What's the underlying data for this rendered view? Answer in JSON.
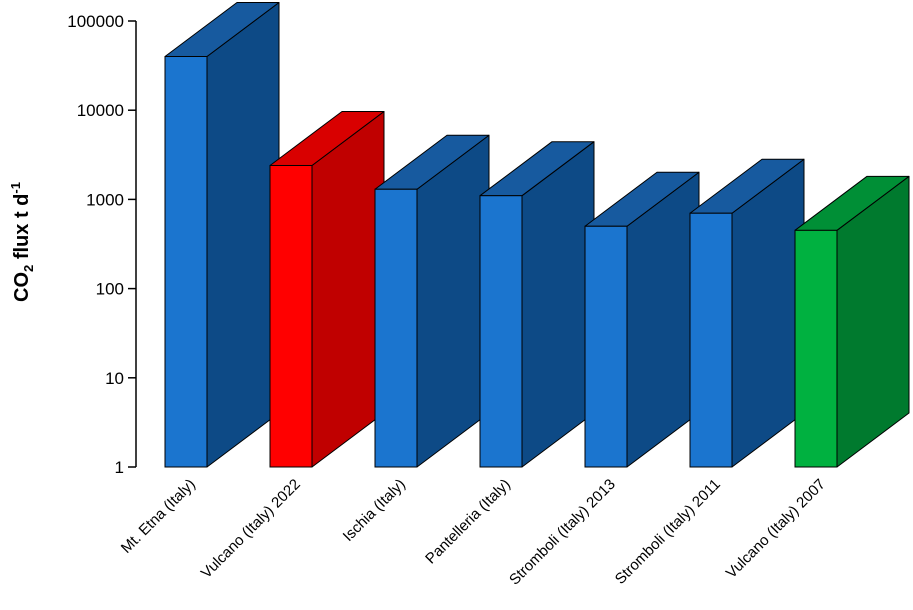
{
  "chart_data": {
    "type": "bar",
    "title": "",
    "ylabel": {
      "base": "CO",
      "sub": "2",
      "mid": " flux t d",
      "sup": "-1"
    },
    "yscale": "log",
    "ylim": [
      1,
      100000
    ],
    "yticks": [
      "1",
      "10",
      "100",
      "1000",
      "10000",
      "100000"
    ],
    "categories": [
      "Mt. Etna (Italy)",
      "Vulcano (Italy) 2022",
      "Ischia (Italy)",
      "Pantelleria (Italy)",
      "Stromboli (Italy) 2013",
      "Stromboli (Italy) 2011",
      "Vulcano (Italy) 2007"
    ],
    "values": [
      40000,
      2400,
      1300,
      1100,
      500,
      700,
      450
    ],
    "colors": [
      "#1b75cf",
      "#ff0000",
      "#1b75cf",
      "#1b75cf",
      "#1b75cf",
      "#1b75cf",
      "#00b140"
    ],
    "side_colors": [
      "#0d4a86",
      "#c00000",
      "#0d4a86",
      "#0d4a86",
      "#0d4a86",
      "#0d4a86",
      "#007a2e"
    ],
    "top_colors": [
      "#175a9f",
      "#d90000",
      "#175a9f",
      "#175a9f",
      "#175a9f",
      "#175a9f",
      "#008f36"
    ],
    "grid": false,
    "legend": "none"
  }
}
